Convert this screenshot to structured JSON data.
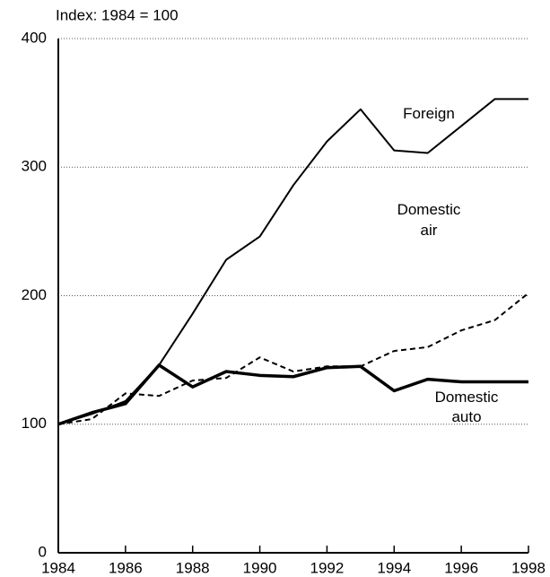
{
  "chart_data": {
    "type": "line",
    "ylabel": "Index: 1984 = 100",
    "x": [
      1984,
      1985,
      1986,
      1987,
      1988,
      1989,
      1990,
      1991,
      1992,
      1993,
      1994,
      1995,
      1996,
      1997,
      1998
    ],
    "series": [
      {
        "name": "Foreign",
        "color": "#000000",
        "style": "solid",
        "width": 2,
        "values": [
          100,
          108,
          118,
          146,
          186,
          228,
          246,
          286,
          320,
          345,
          313,
          311,
          332,
          353,
          353
        ]
      },
      {
        "name": "Domestic air",
        "color": "#000000",
        "style": "dashed",
        "width": 2,
        "values": [
          100,
          104,
          124,
          122,
          134,
          136,
          152,
          141,
          145,
          145,
          157,
          160,
          173,
          181,
          202
        ]
      },
      {
        "name": "Domestic auto",
        "color": "#000000",
        "style": "solid",
        "width": 3.5,
        "values": [
          100,
          109,
          116,
          146,
          129,
          141,
          138,
          137,
          144,
          145,
          126,
          135,
          133,
          133,
          133
        ]
      }
    ],
    "xlim": [
      1984,
      1998
    ],
    "xticks": [
      1984,
      1986,
      1988,
      1990,
      1992,
      1994,
      1996,
      1998
    ],
    "ylim": [
      0,
      400
    ],
    "yticks": [
      0,
      100,
      200,
      300,
      400
    ],
    "grid": true
  }
}
